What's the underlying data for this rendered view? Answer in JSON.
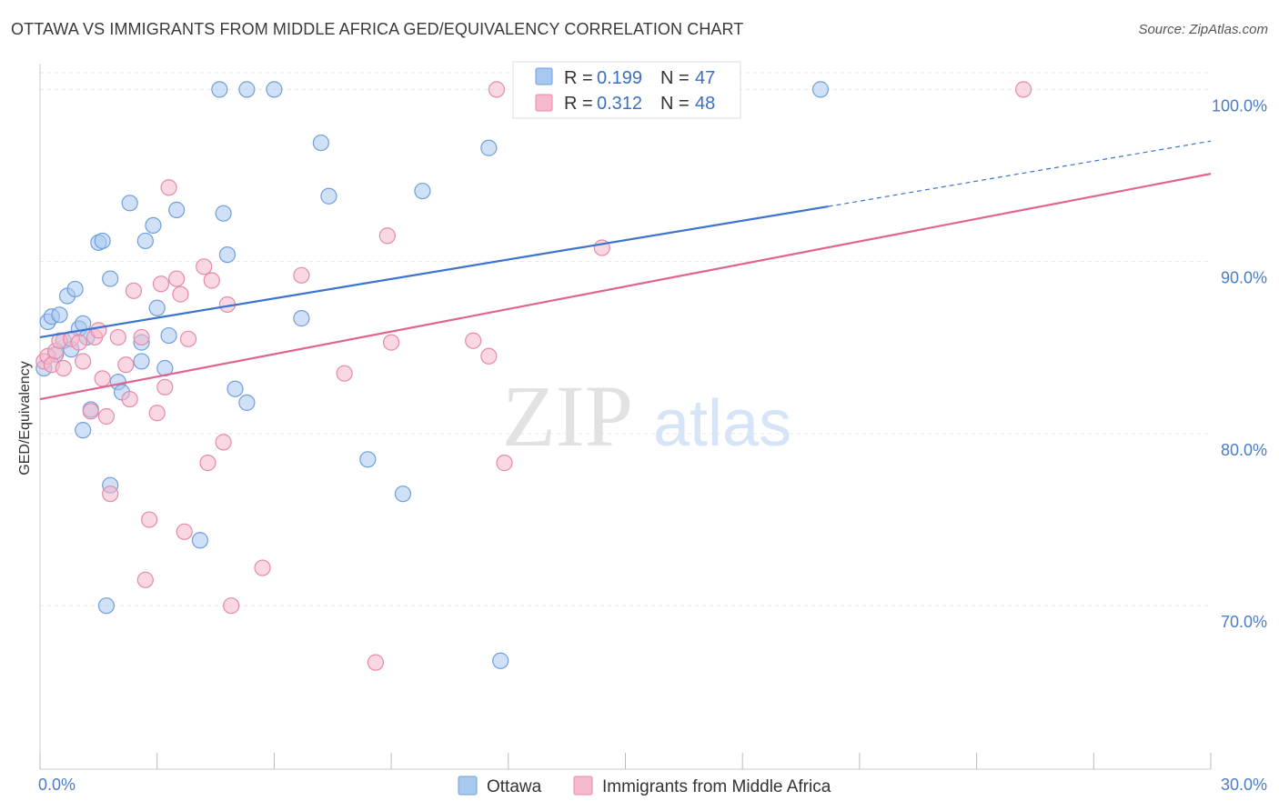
{
  "header": {
    "title": "OTTAWA VS IMMIGRANTS FROM MIDDLE AFRICA GED/EQUIVALENCY CORRELATION CHART",
    "source": "Source: ZipAtlas.com"
  },
  "watermark": {
    "part1": "ZIP",
    "part2": "atlas"
  },
  "legend": {
    "rows": [
      {
        "r_label": "R = ",
        "r_value": "0.199",
        "n_label": "N = ",
        "n_value": "47",
        "color": "#a9c8f0"
      },
      {
        "r_label": "R = ",
        "r_value": "0.312",
        "n_label": "N = ",
        "n_value": "48",
        "color": "#f5b8cc"
      }
    ]
  },
  "chart_data": {
    "type": "scatter",
    "ylabel": "GED/Equivalency",
    "xlim": [
      0,
      30
    ],
    "ylim": [
      60.5,
      101.5
    ],
    "x_ticks": [
      {
        "value": 0,
        "label": "0.0%"
      },
      {
        "value": 30,
        "label": "30.0%"
      }
    ],
    "x_minor_ticks": [
      0,
      3,
      6,
      9,
      12,
      15,
      18,
      21,
      24,
      27,
      30
    ],
    "y_ticks": [
      {
        "value": 70,
        "label": "70.0%"
      },
      {
        "value": 80,
        "label": "80.0%"
      },
      {
        "value": 90,
        "label": "90.0%"
      },
      {
        "value": 100,
        "label": "100.0%"
      }
    ],
    "grid": true,
    "series": [
      {
        "name": "Ottawa",
        "color": "#a9c8f0",
        "stroke": "#6f9fdc",
        "line_color": "#3a74cc",
        "trend": {
          "x0": 0,
          "y0": 85.6,
          "x1": 20.2,
          "y1": 93.2,
          "x_dash_end": 30,
          "y_dash_end": 97.0
        },
        "points": [
          [
            0.1,
            83.8
          ],
          [
            0.2,
            86.5
          ],
          [
            0.3,
            86.8
          ],
          [
            0.5,
            86.9
          ],
          [
            0.6,
            85.4
          ],
          [
            0.7,
            88.0
          ],
          [
            0.9,
            88.4
          ],
          [
            1.0,
            86.1
          ],
          [
            1.1,
            86.4
          ],
          [
            1.2,
            85.6
          ],
          [
            1.1,
            80.2
          ],
          [
            1.3,
            81.4
          ],
          [
            1.5,
            91.1
          ],
          [
            1.6,
            91.2
          ],
          [
            1.8,
            89.0
          ],
          [
            1.8,
            77.0
          ],
          [
            1.7,
            70.0
          ],
          [
            2.0,
            83.0
          ],
          [
            2.1,
            82.4
          ],
          [
            2.3,
            93.4
          ],
          [
            2.6,
            85.3
          ],
          [
            2.6,
            84.2
          ],
          [
            2.7,
            91.2
          ],
          [
            2.9,
            92.1
          ],
          [
            3.0,
            87.3
          ],
          [
            3.2,
            83.8
          ],
          [
            3.3,
            85.7
          ],
          [
            3.5,
            93.0
          ],
          [
            4.1,
            73.8
          ],
          [
            4.6,
            100.0
          ],
          [
            4.7,
            92.8
          ],
          [
            4.8,
            90.4
          ],
          [
            5.0,
            82.6
          ],
          [
            5.3,
            100.0
          ],
          [
            5.3,
            81.8
          ],
          [
            6.0,
            100.0
          ],
          [
            6.7,
            86.7
          ],
          [
            7.2,
            96.9
          ],
          [
            7.4,
            93.8
          ],
          [
            8.4,
            78.5
          ],
          [
            9.3,
            76.5
          ],
          [
            9.8,
            94.1
          ],
          [
            11.5,
            96.6
          ],
          [
            11.8,
            66.8
          ],
          [
            20.0,
            100.0
          ],
          [
            0.4,
            84.6
          ],
          [
            0.8,
            84.9
          ]
        ]
      },
      {
        "name": "Immigrants from Middle Africa",
        "color": "#f5b8cc",
        "stroke": "#e68aa8",
        "line_color": "#e0648f",
        "trend": {
          "x0": 0,
          "y0": 82.0,
          "x1": 30,
          "y1": 95.1
        },
        "points": [
          [
            0.1,
            84.2
          ],
          [
            0.2,
            84.5
          ],
          [
            0.3,
            84.0
          ],
          [
            0.4,
            84.8
          ],
          [
            0.5,
            85.4
          ],
          [
            0.6,
            83.8
          ],
          [
            0.8,
            85.5
          ],
          [
            1.0,
            85.3
          ],
          [
            1.1,
            84.2
          ],
          [
            1.3,
            81.3
          ],
          [
            1.4,
            85.6
          ],
          [
            1.5,
            86.0
          ],
          [
            1.6,
            83.2
          ],
          [
            1.7,
            81.0
          ],
          [
            1.8,
            76.5
          ],
          [
            2.0,
            85.6
          ],
          [
            2.2,
            84.0
          ],
          [
            2.3,
            82.0
          ],
          [
            2.4,
            88.3
          ],
          [
            2.6,
            85.6
          ],
          [
            2.7,
            71.5
          ],
          [
            2.8,
            75.0
          ],
          [
            3.0,
            81.2
          ],
          [
            3.1,
            88.7
          ],
          [
            3.2,
            82.7
          ],
          [
            3.3,
            94.3
          ],
          [
            3.5,
            89.0
          ],
          [
            3.6,
            88.1
          ],
          [
            3.7,
            74.3
          ],
          [
            3.8,
            85.5
          ],
          [
            4.2,
            89.7
          ],
          [
            4.3,
            78.3
          ],
          [
            4.4,
            88.9
          ],
          [
            4.7,
            79.5
          ],
          [
            4.8,
            87.5
          ],
          [
            4.9,
            70.0
          ],
          [
            5.7,
            72.2
          ],
          [
            6.7,
            89.2
          ],
          [
            7.8,
            83.5
          ],
          [
            8.6,
            66.7
          ],
          [
            8.9,
            91.5
          ],
          [
            9.0,
            85.3
          ],
          [
            11.1,
            85.4
          ],
          [
            11.5,
            84.5
          ],
          [
            11.7,
            100.0
          ],
          [
            11.9,
            78.3
          ],
          [
            14.4,
            90.8
          ],
          [
            25.2,
            100.0
          ]
        ]
      }
    ]
  }
}
